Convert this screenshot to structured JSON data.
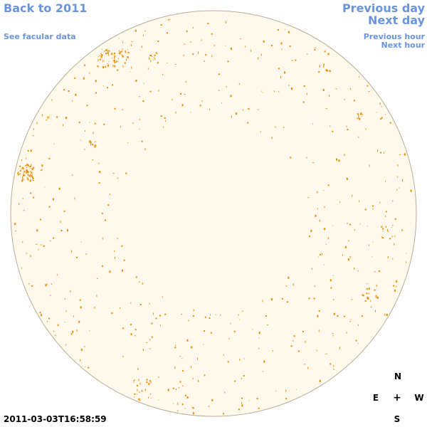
{
  "nav": {
    "back": "Back to 2011",
    "facular": "See facular data",
    "previous_day": "Previous day",
    "next_day": "Next day",
    "previous_hour": "Previous hour",
    "next_hour": "Next hour"
  },
  "sun": {
    "disk_color": "#fff8ec",
    "limb_color": "#b8ae96",
    "facula_color": "#e98d00"
  },
  "compass": {
    "north": "N",
    "east": "E",
    "center": "+",
    "west": "W",
    "south": "S"
  },
  "timestamp": "2011-03-03T16:58:59"
}
